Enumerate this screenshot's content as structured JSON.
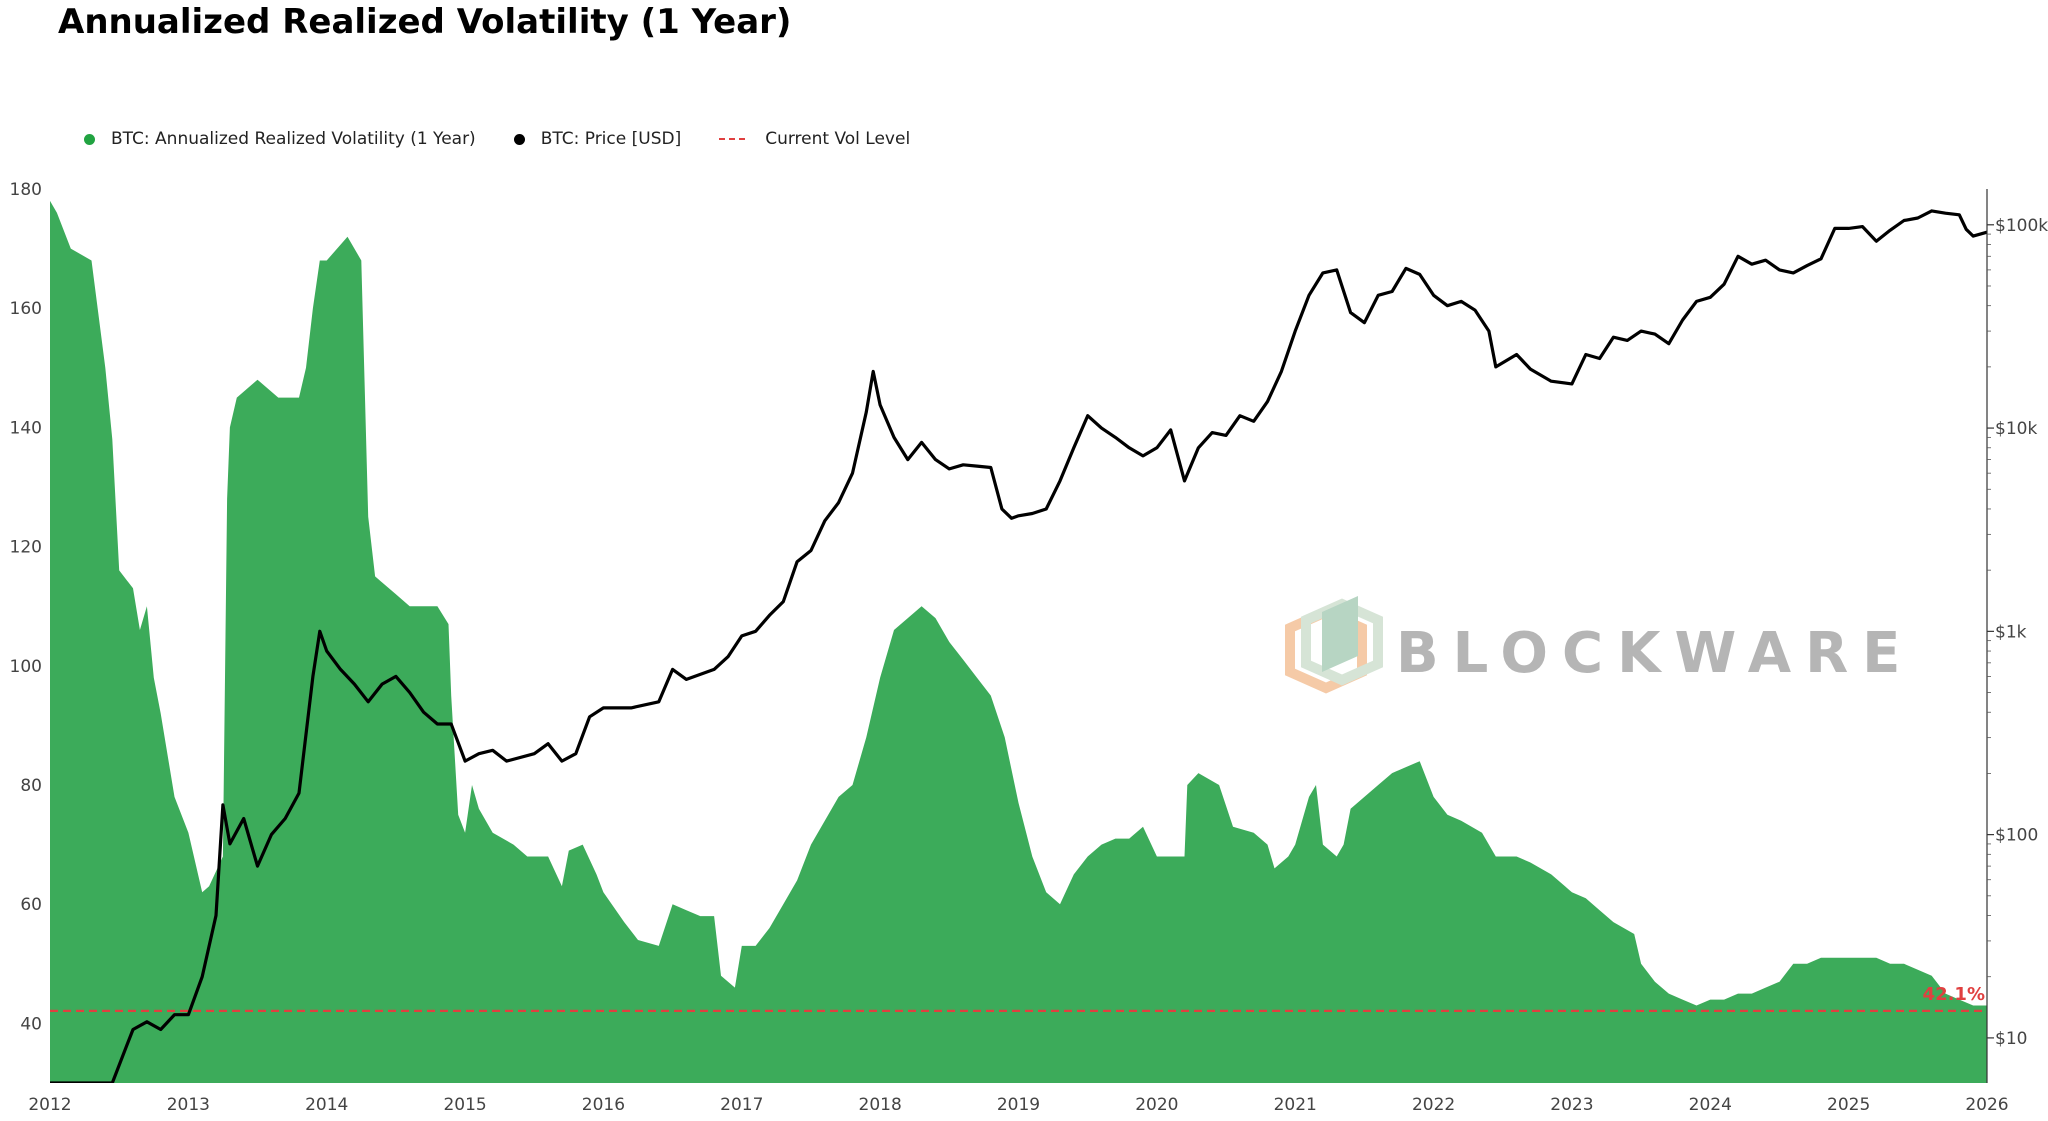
{
  "chart_data": {
    "type": "area",
    "title": "Annualized Realized Volatility (1 Year)",
    "xlabel": "",
    "ylabel": "",
    "x_ticks": [
      "2012",
      "2013",
      "2014",
      "2015",
      "2016",
      "2017",
      "2018",
      "2019",
      "2020",
      "2021",
      "2022",
      "2023",
      "2024",
      "2025",
      "2026"
    ],
    "xlim": [
      2012,
      2026
    ],
    "ylim": [
      30,
      180
    ],
    "y_ticks": [
      "40",
      "60",
      "80",
      "100",
      "120",
      "140",
      "160",
      "180"
    ],
    "y2_scale": "log",
    "y2lim": [
      6,
      150000
    ],
    "y2_ticks": [
      {
        "value": 10,
        "label": "$10"
      },
      {
        "value": 100,
        "label": "$100"
      },
      {
        "value": 1000,
        "label": "$1k"
      },
      {
        "value": 10000,
        "label": "$10k"
      },
      {
        "value": 100000,
        "label": "$100k"
      }
    ],
    "grid": false,
    "legend_position": "top-left",
    "series": [
      {
        "name": "BTC: Annualized Realized Volatility (1 Year)",
        "axis": "left",
        "style": "area",
        "color": "#3cab5a",
        "points": [
          [
            2012.0,
            178
          ],
          [
            2012.05,
            176
          ],
          [
            2012.15,
            170
          ],
          [
            2012.3,
            168
          ],
          [
            2012.4,
            150
          ],
          [
            2012.45,
            138
          ],
          [
            2012.5,
            116
          ],
          [
            2012.6,
            113
          ],
          [
            2012.65,
            106
          ],
          [
            2012.7,
            110
          ],
          [
            2012.75,
            98
          ],
          [
            2012.8,
            92
          ],
          [
            2012.85,
            85
          ],
          [
            2012.9,
            78
          ],
          [
            2013.0,
            72
          ],
          [
            2013.1,
            62
          ],
          [
            2013.15,
            63
          ],
          [
            2013.25,
            68
          ],
          [
            2013.28,
            128
          ],
          [
            2013.3,
            140
          ],
          [
            2013.35,
            145
          ],
          [
            2013.5,
            148
          ],
          [
            2013.65,
            145
          ],
          [
            2013.8,
            145
          ],
          [
            2013.85,
            150
          ],
          [
            2013.9,
            160
          ],
          [
            2013.95,
            168
          ],
          [
            2014.0,
            168
          ],
          [
            2014.15,
            172
          ],
          [
            2014.25,
            168
          ],
          [
            2014.3,
            125
          ],
          [
            2014.35,
            115
          ],
          [
            2014.5,
            112
          ],
          [
            2014.6,
            110
          ],
          [
            2014.8,
            110
          ],
          [
            2014.88,
            107
          ],
          [
            2014.9,
            95
          ],
          [
            2014.95,
            75
          ],
          [
            2015.0,
            72
          ],
          [
            2015.05,
            80
          ],
          [
            2015.1,
            76
          ],
          [
            2015.2,
            72
          ],
          [
            2015.35,
            70
          ],
          [
            2015.45,
            68
          ],
          [
            2015.6,
            68
          ],
          [
            2015.7,
            63
          ],
          [
            2015.75,
            69
          ],
          [
            2015.85,
            70
          ],
          [
            2015.95,
            65
          ],
          [
            2016.0,
            62
          ],
          [
            2016.15,
            57
          ],
          [
            2016.25,
            54
          ],
          [
            2016.4,
            53
          ],
          [
            2016.5,
            60
          ],
          [
            2016.6,
            59
          ],
          [
            2016.7,
            58
          ],
          [
            2016.8,
            58
          ],
          [
            2016.85,
            48
          ],
          [
            2016.95,
            46
          ],
          [
            2017.0,
            53
          ],
          [
            2017.1,
            53
          ],
          [
            2017.2,
            56
          ],
          [
            2017.3,
            60
          ],
          [
            2017.4,
            64
          ],
          [
            2017.5,
            70
          ],
          [
            2017.6,
            74
          ],
          [
            2017.7,
            78
          ],
          [
            2017.8,
            80
          ],
          [
            2017.9,
            88
          ],
          [
            2018.0,
            98
          ],
          [
            2018.1,
            106
          ],
          [
            2018.2,
            108
          ],
          [
            2018.3,
            110
          ],
          [
            2018.4,
            108
          ],
          [
            2018.5,
            104
          ],
          [
            2018.6,
            101
          ],
          [
            2018.7,
            98
          ],
          [
            2018.8,
            95
          ],
          [
            2018.9,
            88
          ],
          [
            2019.0,
            77
          ],
          [
            2019.1,
            68
          ],
          [
            2019.2,
            62
          ],
          [
            2019.3,
            60
          ],
          [
            2019.4,
            65
          ],
          [
            2019.5,
            68
          ],
          [
            2019.6,
            70
          ],
          [
            2019.7,
            71
          ],
          [
            2019.8,
            71
          ],
          [
            2019.9,
            73
          ],
          [
            2020.0,
            68
          ],
          [
            2020.1,
            68
          ],
          [
            2020.2,
            68
          ],
          [
            2020.22,
            80
          ],
          [
            2020.3,
            82
          ],
          [
            2020.45,
            80
          ],
          [
            2020.55,
            73
          ],
          [
            2020.7,
            72
          ],
          [
            2020.8,
            70
          ],
          [
            2020.85,
            66
          ],
          [
            2020.95,
            68
          ],
          [
            2021.0,
            70
          ],
          [
            2021.1,
            78
          ],
          [
            2021.15,
            80
          ],
          [
            2021.2,
            70
          ],
          [
            2021.3,
            68
          ],
          [
            2021.35,
            70
          ],
          [
            2021.4,
            76
          ],
          [
            2021.5,
            78
          ],
          [
            2021.6,
            80
          ],
          [
            2021.7,
            82
          ],
          [
            2021.8,
            83
          ],
          [
            2021.9,
            84
          ],
          [
            2022.0,
            78
          ],
          [
            2022.1,
            75
          ],
          [
            2022.2,
            74
          ],
          [
            2022.35,
            72
          ],
          [
            2022.45,
            68
          ],
          [
            2022.6,
            68
          ],
          [
            2022.7,
            67
          ],
          [
            2022.85,
            65
          ],
          [
            2022.95,
            63
          ],
          [
            2023.0,
            62
          ],
          [
            2023.1,
            61
          ],
          [
            2023.2,
            59
          ],
          [
            2023.3,
            57
          ],
          [
            2023.45,
            55
          ],
          [
            2023.5,
            50
          ],
          [
            2023.6,
            47
          ],
          [
            2023.7,
            45
          ],
          [
            2023.8,
            44
          ],
          [
            2023.9,
            43
          ],
          [
            2024.0,
            44
          ],
          [
            2024.1,
            44
          ],
          [
            2024.2,
            45
          ],
          [
            2024.3,
            45
          ],
          [
            2024.4,
            46
          ],
          [
            2024.5,
            47
          ],
          [
            2024.6,
            50
          ],
          [
            2024.7,
            50
          ],
          [
            2024.8,
            51
          ],
          [
            2024.9,
            51
          ],
          [
            2025.0,
            51
          ],
          [
            2025.1,
            51
          ],
          [
            2025.2,
            51
          ],
          [
            2025.3,
            50
          ],
          [
            2025.4,
            50
          ],
          [
            2025.5,
            49
          ],
          [
            2025.6,
            48
          ],
          [
            2025.7,
            45
          ],
          [
            2025.8,
            44
          ],
          [
            2025.9,
            43
          ],
          [
            2026.0,
            43
          ]
        ]
      },
      {
        "name": "BTC: Price [USD]",
        "axis": "right",
        "style": "line",
        "color": "#000000",
        "points": [
          [
            2012.0,
            6
          ],
          [
            2012.1,
            5
          ],
          [
            2012.2,
            5
          ],
          [
            2012.3,
            5
          ],
          [
            2012.45,
            6
          ],
          [
            2012.55,
            9
          ],
          [
            2012.6,
            11
          ],
          [
            2012.7,
            12
          ],
          [
            2012.8,
            11
          ],
          [
            2012.9,
            13
          ],
          [
            2013.0,
            13
          ],
          [
            2013.1,
            20
          ],
          [
            2013.2,
            40
          ],
          [
            2013.25,
            140
          ],
          [
            2013.3,
            90
          ],
          [
            2013.4,
            120
          ],
          [
            2013.5,
            70
          ],
          [
            2013.6,
            100
          ],
          [
            2013.7,
            120
          ],
          [
            2013.8,
            160
          ],
          [
            2013.9,
            600
          ],
          [
            2013.95,
            1000
          ],
          [
            2014.0,
            800
          ],
          [
            2014.1,
            650
          ],
          [
            2014.2,
            550
          ],
          [
            2014.3,
            450
          ],
          [
            2014.4,
            550
          ],
          [
            2014.5,
            600
          ],
          [
            2014.6,
            500
          ],
          [
            2014.7,
            400
          ],
          [
            2014.8,
            350
          ],
          [
            2014.9,
            350
          ],
          [
            2015.0,
            230
          ],
          [
            2015.1,
            250
          ],
          [
            2015.2,
            260
          ],
          [
            2015.3,
            230
          ],
          [
            2015.5,
            250
          ],
          [
            2015.6,
            280
          ],
          [
            2015.7,
            230
          ],
          [
            2015.8,
            250
          ],
          [
            2015.9,
            380
          ],
          [
            2016.0,
            420
          ],
          [
            2016.2,
            420
          ],
          [
            2016.4,
            450
          ],
          [
            2016.5,
            650
          ],
          [
            2016.6,
            580
          ],
          [
            2016.8,
            650
          ],
          [
            2016.9,
            750
          ],
          [
            2017.0,
            950
          ],
          [
            2017.1,
            1000
          ],
          [
            2017.2,
            1200
          ],
          [
            2017.3,
            1400
          ],
          [
            2017.4,
            2200
          ],
          [
            2017.5,
            2500
          ],
          [
            2017.6,
            3500
          ],
          [
            2017.7,
            4300
          ],
          [
            2017.8,
            6000
          ],
          [
            2017.9,
            12000
          ],
          [
            2017.95,
            19000
          ],
          [
            2018.0,
            13000
          ],
          [
            2018.1,
            9000
          ],
          [
            2018.2,
            7000
          ],
          [
            2018.3,
            8500
          ],
          [
            2018.4,
            7000
          ],
          [
            2018.5,
            6300
          ],
          [
            2018.6,
            6600
          ],
          [
            2018.7,
            6500
          ],
          [
            2018.8,
            6400
          ],
          [
            2018.88,
            4000
          ],
          [
            2018.95,
            3600
          ],
          [
            2019.0,
            3700
          ],
          [
            2019.1,
            3800
          ],
          [
            2019.2,
            4000
          ],
          [
            2019.3,
            5500
          ],
          [
            2019.4,
            8000
          ],
          [
            2019.5,
            11500
          ],
          [
            2019.6,
            10000
          ],
          [
            2019.7,
            9000
          ],
          [
            2019.8,
            8000
          ],
          [
            2019.9,
            7300
          ],
          [
            2020.0,
            8000
          ],
          [
            2020.1,
            9800
          ],
          [
            2020.2,
            5500
          ],
          [
            2020.3,
            8000
          ],
          [
            2020.4,
            9500
          ],
          [
            2020.5,
            9200
          ],
          [
            2020.6,
            11500
          ],
          [
            2020.7,
            10800
          ],
          [
            2020.8,
            13500
          ],
          [
            2020.9,
            19000
          ],
          [
            2021.0,
            30000
          ],
          [
            2021.1,
            45000
          ],
          [
            2021.2,
            58000
          ],
          [
            2021.3,
            60000
          ],
          [
            2021.4,
            37000
          ],
          [
            2021.5,
            33000
          ],
          [
            2021.6,
            45000
          ],
          [
            2021.7,
            47000
          ],
          [
            2021.8,
            61000
          ],
          [
            2021.9,
            57000
          ],
          [
            2022.0,
            45000
          ],
          [
            2022.1,
            40000
          ],
          [
            2022.2,
            42000
          ],
          [
            2022.3,
            38000
          ],
          [
            2022.4,
            30000
          ],
          [
            2022.45,
            20000
          ],
          [
            2022.6,
            23000
          ],
          [
            2022.7,
            19500
          ],
          [
            2022.85,
            17000
          ],
          [
            2023.0,
            16500
          ],
          [
            2023.1,
            23000
          ],
          [
            2023.2,
            22000
          ],
          [
            2023.3,
            28000
          ],
          [
            2023.4,
            27000
          ],
          [
            2023.5,
            30000
          ],
          [
            2023.6,
            29000
          ],
          [
            2023.7,
            26000
          ],
          [
            2023.8,
            34000
          ],
          [
            2023.9,
            42000
          ],
          [
            2024.0,
            44000
          ],
          [
            2024.1,
            51000
          ],
          [
            2024.2,
            70000
          ],
          [
            2024.3,
            64000
          ],
          [
            2024.4,
            67000
          ],
          [
            2024.5,
            60000
          ],
          [
            2024.6,
            58000
          ],
          [
            2024.7,
            63000
          ],
          [
            2024.8,
            68000
          ],
          [
            2024.9,
            96000
          ],
          [
            2025.0,
            96000
          ],
          [
            2025.1,
            98000
          ],
          [
            2025.2,
            83000
          ],
          [
            2025.3,
            94000
          ],
          [
            2025.4,
            105000
          ],
          [
            2025.5,
            108000
          ],
          [
            2025.6,
            117000
          ],
          [
            2025.7,
            114000
          ],
          [
            2025.8,
            112000
          ],
          [
            2025.85,
            95000
          ],
          [
            2025.9,
            88000
          ],
          [
            2026.0,
            92000
          ]
        ]
      }
    ],
    "reference_line": {
      "name": "Current Vol Level",
      "axis": "left",
      "value": 42.1,
      "label": "42.1%",
      "color": "#e04040",
      "style": "dashed"
    },
    "watermark": "BLOCKWARE"
  },
  "colors": {
    "area": "#3cab5a",
    "price": "#000000",
    "ref": "#e04040",
    "legend_vol_dot": "#21a341",
    "legend_price_dot": "#000000"
  }
}
